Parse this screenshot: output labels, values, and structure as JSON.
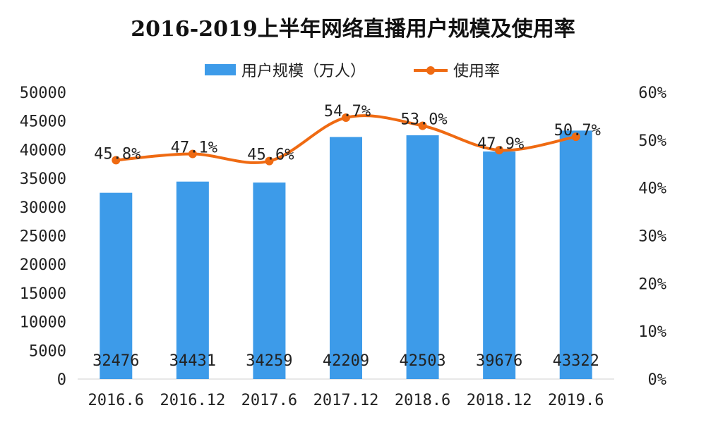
{
  "title": "2016-2019上半年网络直播用户规模及使用率",
  "legend": {
    "bar_label": "用户规模（万人）",
    "line_label": "使用率"
  },
  "colors": {
    "bar": "#3d9be9",
    "line": "#ef6a12",
    "axis_text": "#222222"
  },
  "chart_data": {
    "type": "bar",
    "title": "2016-2019上半年网络直播用户规模及使用率",
    "categories": [
      "2016.6",
      "2016.12",
      "2017.6",
      "2017.12",
      "2018.6",
      "2018.12",
      "2019.6"
    ],
    "series": [
      {
        "name": "用户规模（万人）",
        "type": "bar",
        "axis": "left",
        "values": [
          32476,
          34431,
          34259,
          42209,
          42503,
          39676,
          43322
        ]
      },
      {
        "name": "使用率",
        "type": "line",
        "axis": "right",
        "values": [
          45.8,
          47.1,
          45.6,
          54.7,
          53.0,
          47.9,
          50.7
        ]
      }
    ],
    "value_labels": [
      "32476",
      "34431",
      "34259",
      "42209",
      "42503",
      "39676",
      "43322"
    ],
    "rate_labels": [
      "45.8%",
      "47.1%",
      "45.6%",
      "54.7%",
      "53.0%",
      "47.9%",
      "50.7%"
    ],
    "left_axis": {
      "ylim": [
        0,
        50000
      ],
      "ticks": [
        0,
        5000,
        10000,
        15000,
        20000,
        25000,
        30000,
        35000,
        40000,
        45000,
        50000
      ]
    },
    "right_axis": {
      "ylim": [
        0,
        60
      ],
      "ticks": [
        "0%",
        "10%",
        "20%",
        "30%",
        "40%",
        "50%",
        "60%"
      ]
    },
    "grid": false,
    "legend_position": "top"
  }
}
